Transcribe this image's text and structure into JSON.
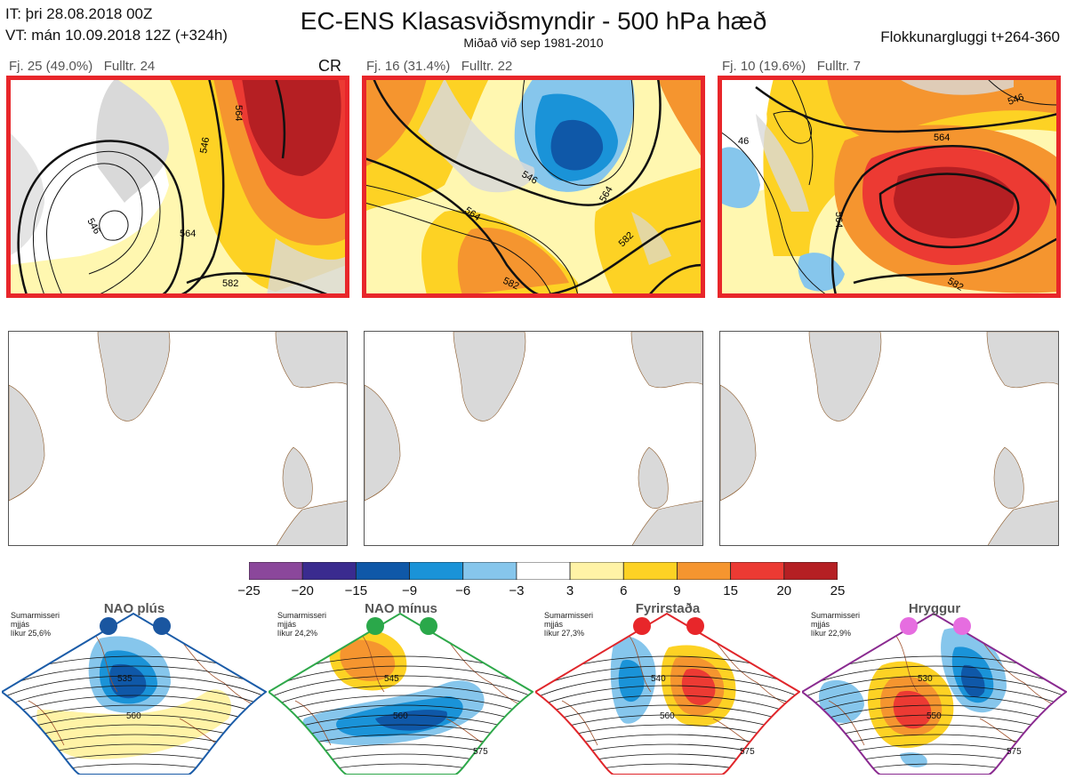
{
  "header": {
    "initial_time": "IT: þri 28.08.2018 00Z",
    "valid_time": "VT: mán 10.09.2018 12Z  (+324h)",
    "title": "EC-ENS Klasasviðsmyndir - 500 hPa hæð",
    "subtitle": "Miðað við sep 1981-2010",
    "window": "Flokkunargluggi t+264-360"
  },
  "clusters": [
    {
      "label": "Fj. 25 (49.0%)",
      "rep": "Fulltr. 24",
      "tag": "CR",
      "contours": [
        "546",
        "564",
        "546",
        "564",
        "582"
      ]
    },
    {
      "label": "Fj. 16 (31.4%)",
      "rep": "Fulltr. 22",
      "contours": [
        "546",
        "564",
        "564",
        "582",
        "582"
      ]
    },
    {
      "label": "Fj. 10 (19.6%)",
      "rep": "Fulltr. 7",
      "contours": [
        "46",
        "564",
        "546",
        "564",
        "582"
      ]
    }
  ],
  "colorbar": {
    "ticks": [
      "−25",
      "−20",
      "−15",
      "−9",
      "−6",
      "−3",
      "3",
      "6",
      "9",
      "15",
      "20",
      "25"
    ],
    "colors": [
      "#8b479b",
      "#3a2b8f",
      "#0f58a8",
      "#1a93d8",
      "#86c6ec",
      "#ffffff",
      "#fff3a6",
      "#fdd224",
      "#f5952f",
      "#ec3a33",
      "#b51f23"
    ]
  },
  "regimes": [
    {
      "name": "NAO plús",
      "note1": "Sumarmisseri",
      "note2": "mjjás",
      "note3": "líkur 25,6%",
      "color": "#1b5ca8",
      "dot": "#1a56a0",
      "contours": [
        "535",
        "560"
      ]
    },
    {
      "name": "NAO mínus",
      "note1": "Sumarmisseri",
      "note2": "mjjás",
      "note3": "líkur 24,2%",
      "color": "#2ea84a",
      "dot": "#2aa84a",
      "contours": [
        "545",
        "560",
        "575"
      ]
    },
    {
      "name": "Fyrirstaða",
      "note1": "Sumarmisseri",
      "note2": "mjjás",
      "note3": "líkur 27,3%",
      "color": "#e0262b",
      "dot": "#e8262a",
      "contours": [
        "540",
        "560",
        "575"
      ]
    },
    {
      "name": "Hryggur",
      "note1": "Sumarmisseri",
      "note2": "mjjás",
      "note3": "líkur 22,9%",
      "color": "#8a2a90",
      "dot": "#e66de0",
      "contours": [
        "530",
        "550",
        "575"
      ]
    }
  ]
}
